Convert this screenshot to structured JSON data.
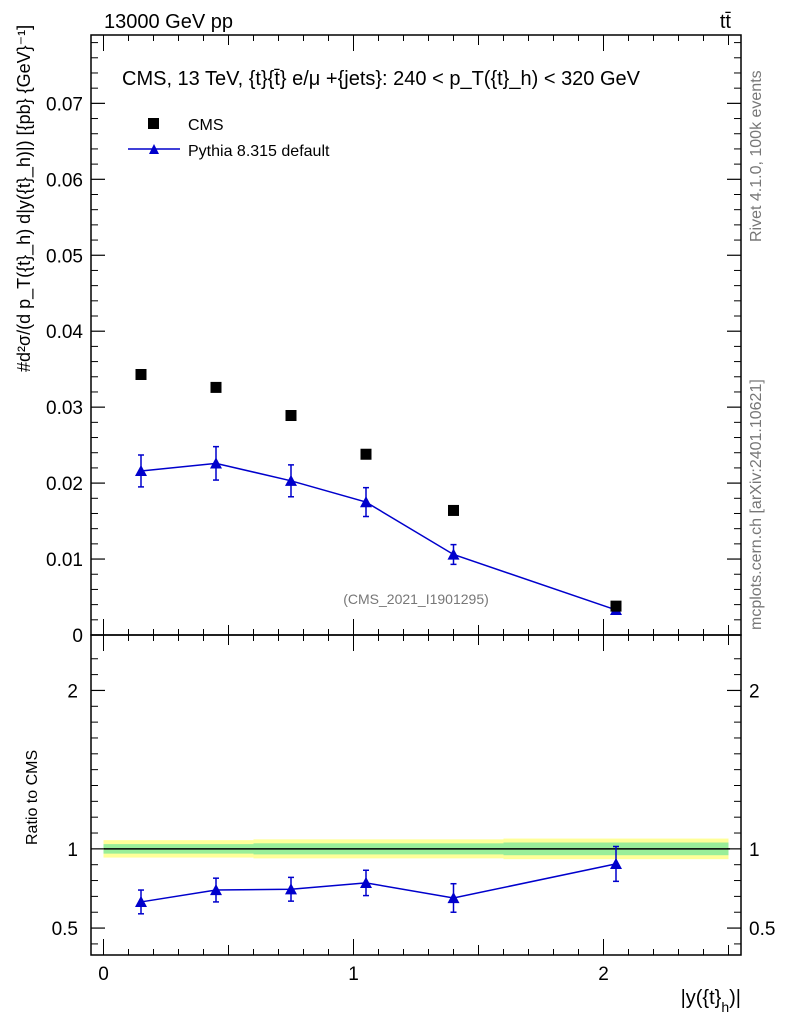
{
  "header": {
    "left": "13000 GeV pp",
    "right": "tt̄"
  },
  "side_labels": {
    "rivet": "Rivet 4.1.0,  100k events",
    "mcplots": "mcplots.cern.ch [arXiv:2401.10621]"
  },
  "chart_data": [
    {
      "type": "scatter",
      "panel": "main",
      "title": "CMS, 13 TeV, {t}{t̄} e/μ +{jets}: 240 <  p_T({t}_h) < 320 GeV",
      "ylabel": "#d²σ/(d p_T({t}_h) d|y({t}_h)|) [{pb} {GeV}⁻¹]",
      "xlabel": "|y({t}_h)|",
      "xlim": [
        -0.05,
        2.55
      ],
      "ylim": [
        0,
        0.079
      ],
      "yticks": [
        0,
        0.01,
        0.02,
        0.03,
        0.04,
        0.05,
        0.06,
        0.07
      ],
      "ytick_labels": [
        "0",
        "0.01",
        "0.02",
        "0.03",
        "0.04",
        "0.05",
        "0.06",
        "0.07"
      ],
      "watermark": "(CMS_2021_I1901295)",
      "legend": [
        "CMS",
        "Pythia 8.315 default"
      ],
      "series": [
        {
          "name": "CMS",
          "marker": "square",
          "color": "#000000",
          "x": [
            0.15,
            0.45,
            0.75,
            1.05,
            1.4,
            2.05
          ],
          "y": [
            0.0343,
            0.0326,
            0.0289,
            0.0238,
            0.0164,
            0.0038
          ]
        },
        {
          "name": "Pythia 8.315 default",
          "marker": "triangle",
          "color": "#0000cc",
          "x": [
            0.15,
            0.45,
            0.75,
            1.05,
            1.4,
            2.05
          ],
          "y": [
            0.0216,
            0.0226,
            0.0203,
            0.0175,
            0.0106,
            0.0033
          ],
          "yerr": [
            0.0021,
            0.0022,
            0.0021,
            0.0019,
            0.0013,
            0.0004
          ]
        }
      ]
    },
    {
      "type": "line",
      "panel": "ratio",
      "ylabel": "Ratio to CMS",
      "xlabel": "|y({t}_h)|",
      "xlim": [
        -0.05,
        2.55
      ],
      "ylim": [
        0.33,
        2.35
      ],
      "xticks": [
        0,
        1,
        2
      ],
      "xtick_labels": [
        "0",
        "1",
        "2"
      ],
      "yticks": [
        0.5,
        1,
        2
      ],
      "ytick_labels": [
        "0.5",
        "1",
        "2"
      ],
      "bands": [
        {
          "x_edges": [
            0,
            0.6,
            1.6,
            2.5
          ],
          "yellow": [
            0.055,
            0.06,
            0.065
          ],
          "green": [
            0.03,
            0.035,
            0.04
          ]
        }
      ],
      "series": [
        {
          "name": "Pythia 8.315 default",
          "color": "#0000cc",
          "x": [
            0.15,
            0.45,
            0.75,
            1.05,
            1.4,
            2.05
          ],
          "y": [
            0.665,
            0.74,
            0.745,
            0.785,
            0.69,
            0.905
          ],
          "yerr": [
            0.075,
            0.075,
            0.075,
            0.08,
            0.09,
            0.11
          ]
        }
      ]
    }
  ]
}
